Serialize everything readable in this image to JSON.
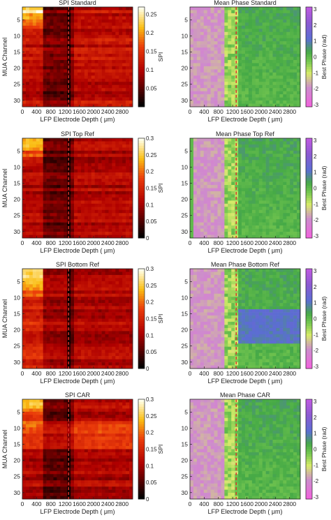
{
  "chart_data": [
    {
      "type": "heatmap",
      "title": "SPI Standard",
      "xlabel": "LFP Electrode Depth ( μm)",
      "ylabel": "MUA Channel",
      "xticks": [
        "0",
        "400",
        "800",
        "1200",
        "1600",
        "2000",
        "2400",
        "2800"
      ],
      "yticks": [
        "5",
        "10",
        "15",
        "20",
        "25",
        "30"
      ],
      "colorbar_label": "SPI",
      "colorbar_ticks": [
        "0.05",
        "0.1",
        "0.15",
        "0.2",
        "0.25"
      ],
      "colormap": "hot",
      "clim": [
        0,
        0.27
      ],
      "xlim": [
        0,
        3100
      ],
      "ylim": [
        1,
        32
      ],
      "divider_depth": 1300,
      "divider_color": "#e0322a"
    },
    {
      "type": "heatmap",
      "title": "Mean Phase Standard",
      "xlabel": "LFP Electrode Depth ( μm)",
      "ylabel": "",
      "xticks": [
        "0",
        "400",
        "800",
        "1200",
        "1600",
        "2000",
        "2400",
        "2800"
      ],
      "yticks": [
        "5",
        "10",
        "15",
        "20",
        "25",
        "30"
      ],
      "colorbar_label": "Best Phase (rad)",
      "colorbar_ticks": [
        "3",
        "2",
        "1",
        "0",
        "-1",
        "-2",
        "-3"
      ],
      "colormap": "phase",
      "clim": [
        -3.14,
        3.14
      ],
      "xlim": [
        0,
        3100
      ],
      "ylim": [
        1,
        32
      ],
      "divider_depth": 1300,
      "divider_color": "#e0322a"
    },
    {
      "type": "heatmap",
      "title": "SPI Top Ref",
      "xlabel": "LFP Electrode Depth ( μm)",
      "ylabel": "MUA Channel",
      "xticks": [
        "0",
        "400",
        "800",
        "1200",
        "1600",
        "2000",
        "2400",
        "2800"
      ],
      "yticks": [
        "5",
        "10",
        "15",
        "20",
        "25",
        "30"
      ],
      "colorbar_label": "SPI",
      "colorbar_ticks": [
        "0",
        "0.05",
        "0.1",
        "0.15",
        "0.2",
        "0.25",
        "0.3"
      ],
      "colormap": "hot",
      "clim": [
        0,
        0.3
      ],
      "xlim": [
        0,
        3100
      ],
      "ylim": [
        1,
        32
      ],
      "divider_depth": 1300,
      "divider_color": "#e0322a"
    },
    {
      "type": "heatmap",
      "title": "Mean Phase Top Ref",
      "xlabel": "LFP Electrode Depth ( μm)",
      "ylabel": "",
      "xticks": [
        "0",
        "400",
        "800",
        "1200",
        "1600",
        "2000",
        "2400",
        "2800"
      ],
      "yticks": [
        "5",
        "10",
        "15",
        "20",
        "25",
        "30"
      ],
      "colorbar_label": "Best Phase (rad)",
      "colorbar_ticks": [
        "3",
        "2",
        "1",
        "0",
        "-1",
        "-2",
        "-3"
      ],
      "colormap": "phase",
      "clim": [
        -3.14,
        3.14
      ],
      "xlim": [
        0,
        3100
      ],
      "ylim": [
        1,
        32
      ],
      "divider_depth": 1300,
      "divider_color": "#e0322a"
    },
    {
      "type": "heatmap",
      "title": "SPI Bottom Ref",
      "xlabel": "LFP Electrode Depth ( μm)",
      "ylabel": "MUA Channel",
      "xticks": [
        "0",
        "400",
        "800",
        "1200",
        "1600",
        "2000",
        "2400",
        "2800"
      ],
      "yticks": [
        "5",
        "10",
        "15",
        "20",
        "25",
        "30"
      ],
      "colorbar_label": "SPI",
      "colorbar_ticks": [
        "0",
        "0.05",
        "0.1",
        "0.15",
        "0.2",
        "0.25",
        "0.3"
      ],
      "colormap": "hot",
      "clim": [
        0,
        0.3
      ],
      "xlim": [
        0,
        3100
      ],
      "ylim": [
        1,
        32
      ],
      "divider_depth": 1300,
      "divider_color": "#e0322a"
    },
    {
      "type": "heatmap",
      "title": "Mean Phase Bottom Ref",
      "xlabel": "LFP Electrode Depth ( μm)",
      "ylabel": "",
      "xticks": [
        "0",
        "400",
        "800",
        "1200",
        "1600",
        "2000",
        "2400",
        "2800"
      ],
      "yticks": [
        "5",
        "10",
        "15",
        "20",
        "25",
        "30"
      ],
      "colorbar_label": "Best Phase (rad)",
      "colorbar_ticks": [
        "3",
        "2",
        "1",
        "0",
        "-1",
        "-2",
        "-3"
      ],
      "colormap": "phase",
      "clim": [
        -3.14,
        3.14
      ],
      "xlim": [
        0,
        3100
      ],
      "ylim": [
        1,
        32
      ],
      "divider_depth": 1300,
      "divider_color": "#e0322a"
    },
    {
      "type": "heatmap",
      "title": "SPI CAR",
      "xlabel": "LFP Electrode Depth ( μm)",
      "ylabel": "MUA Channel",
      "xticks": [
        "0",
        "400",
        "800",
        "1200",
        "1600",
        "2000",
        "2400",
        "2800"
      ],
      "yticks": [
        "5",
        "10",
        "15",
        "20",
        "25",
        "30"
      ],
      "colorbar_label": "SPI",
      "colorbar_ticks": [
        "0",
        "0.05",
        "0.1",
        "0.15",
        "0.2",
        "0.25",
        "0.3"
      ],
      "colormap": "hot",
      "clim": [
        0,
        0.3
      ],
      "xlim": [
        0,
        3100
      ],
      "ylim": [
        1,
        32
      ],
      "divider_depth": 1300,
      "divider_color": "#e0322a"
    },
    {
      "type": "heatmap",
      "title": "Mean Phase CAR",
      "xlabel": "LFP Electrode Depth ( μm)",
      "ylabel": "",
      "xticks": [
        "0",
        "400",
        "800",
        "1200",
        "1600",
        "2000",
        "2400",
        "2800"
      ],
      "yticks": [
        "5",
        "10",
        "15",
        "20",
        "25",
        "30"
      ],
      "colorbar_label": "Best Phase (rad)",
      "colorbar_ticks": [
        "3",
        "2",
        "1",
        "0",
        "-1",
        "-2",
        "-3"
      ],
      "colormap": "phase",
      "clim": [
        -3.14,
        3.14
      ],
      "xlim": [
        0,
        3100
      ],
      "ylim": [
        1,
        32
      ],
      "divider_depth": 1300,
      "divider_color": "#e0322a"
    }
  ]
}
